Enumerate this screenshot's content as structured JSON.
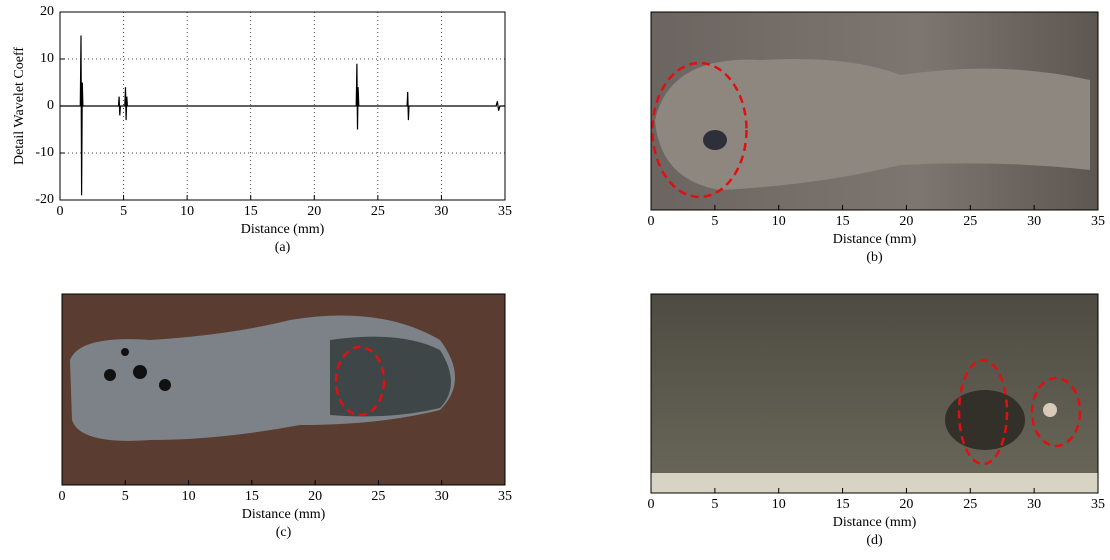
{
  "chart_data": [
    {
      "type": "line",
      "color": "#000000",
      "ylabel": "Detail Wavelet Coeff",
      "xlabel": "Distance (mm)",
      "caption": "(a)",
      "xlim": [
        0,
        35
      ],
      "xticks": [
        0,
        5,
        10,
        15,
        20,
        25,
        30,
        35
      ],
      "ylim": [
        -20,
        20
      ],
      "yticks": [
        -20,
        -10,
        0,
        10,
        20
      ],
      "grid": true,
      "x": [
        0,
        1.6,
        1.65,
        1.7,
        1.75,
        1.8,
        4.6,
        4.65,
        4.7,
        4.75,
        5.1,
        5.15,
        5.2,
        5.25,
        5.3,
        23.3,
        23.35,
        23.4,
        23.45,
        23.5,
        27.3,
        27.35,
        27.4,
        27.45,
        34.3,
        34.4,
        34.5,
        34.6,
        35
      ],
      "values": [
        0,
        0,
        15,
        -19,
        5,
        0,
        0,
        2,
        -2,
        0,
        0,
        4,
        -3,
        2,
        0,
        0,
        9,
        -5,
        4,
        0,
        0,
        3,
        -3,
        0,
        0,
        1,
        -1,
        0,
        0
      ]
    },
    {
      "type": "photo",
      "xlabel": "Distance (mm)",
      "caption": "(b)",
      "xlim": [
        0,
        35
      ],
      "xticks": [
        0,
        5,
        10,
        15,
        20,
        25,
        30,
        35
      ]
    },
    {
      "type": "photo",
      "xlabel": "Distance (mm)",
      "caption": "(c)",
      "xlim": [
        0,
        35
      ],
      "xticks": [
        0,
        5,
        10,
        15,
        20,
        25,
        30,
        35
      ]
    },
    {
      "type": "photo",
      "xlabel": "Distance (mm)",
      "caption": "(d)",
      "xlim": [
        0,
        35
      ],
      "xticks": [
        0,
        5,
        10,
        15,
        20,
        25,
        30,
        35
      ]
    }
  ]
}
